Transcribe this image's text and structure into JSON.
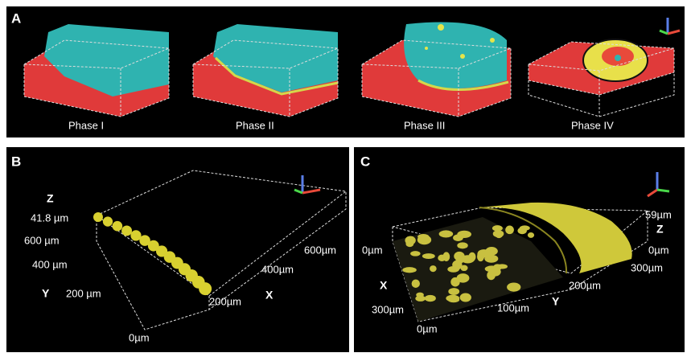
{
  "panel_a": {
    "label": "A",
    "captions": [
      "Phase I",
      "Phase II",
      "Phase III",
      "Phase IV"
    ]
  },
  "panel_b": {
    "label": "B",
    "axis_texts": [
      "Z",
      "41.8 µm",
      "600 µm",
      "400 µm",
      "Y",
      "200 µm",
      "0µm",
      "200µm",
      "X",
      "400µm",
      "600µm"
    ]
  },
  "panel_c": {
    "label": "C",
    "axis_texts": [
      "0µm",
      "X",
      "300µm",
      "0µm",
      "100µm",
      "Y",
      "200µm",
      "300µm",
      "59µm",
      "Z",
      "0µm"
    ]
  }
}
